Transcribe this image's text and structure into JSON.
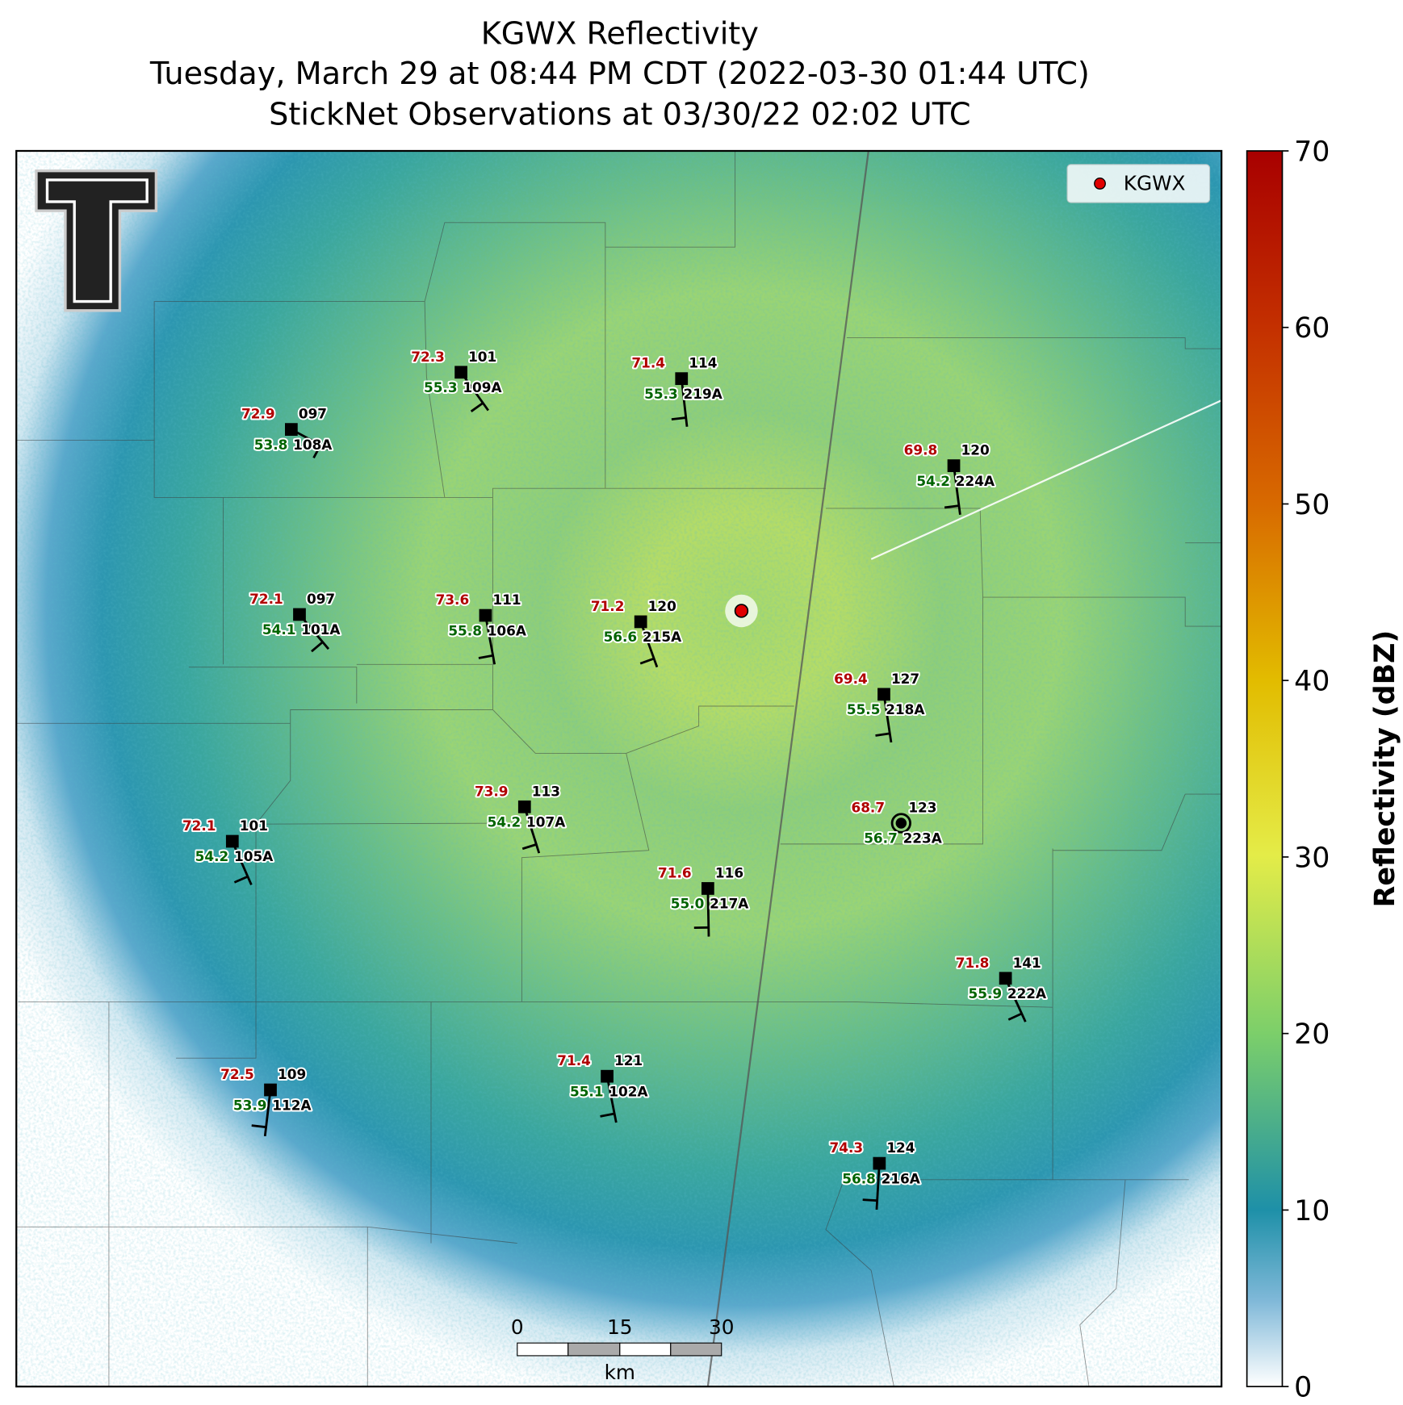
{
  "title": [
    "KGWX Reflectivity",
    "Tuesday, March 29 at 08:44 PM CDT (2022-03-30 01:44 UTC)",
    "StickNet Observations at 03/30/22 02:02 UTC"
  ],
  "legend": {
    "label": "KGWX"
  },
  "colorbar": {
    "label": "Reflectivity (dBZ)",
    "lim": [
      0,
      70
    ],
    "ticks": [
      0,
      10,
      20,
      30,
      40,
      50,
      60,
      70
    ]
  },
  "scalebar": {
    "labels": [
      "0",
      "15",
      "30"
    ],
    "unit": "km"
  },
  "stations": [
    {
      "id": "109A",
      "temp": "72.3",
      "dew": "55.3",
      "code": "101"
    },
    {
      "id": "219A",
      "temp": "71.4",
      "dew": "55.3",
      "code": "114"
    },
    {
      "id": "108A",
      "temp": "72.9",
      "dew": "53.8",
      "code": "097"
    },
    {
      "id": "224A",
      "temp": "69.8",
      "dew": "54.2",
      "code": "120"
    },
    {
      "id": "101A",
      "temp": "72.1",
      "dew": "54.1",
      "code": "097"
    },
    {
      "id": "106A",
      "temp": "73.6",
      "dew": "55.8",
      "code": "111"
    },
    {
      "id": "215A",
      "temp": "71.2",
      "dew": "56.6",
      "code": "120"
    },
    {
      "id": "218A",
      "temp": "69.4",
      "dew": "55.5",
      "code": "127"
    },
    {
      "id": "223A",
      "temp": "68.7",
      "dew": "56.7",
      "code": "123"
    },
    {
      "id": "107A",
      "temp": "73.9",
      "dew": "54.2",
      "code": "113"
    },
    {
      "id": "105A",
      "temp": "72.1",
      "dew": "54.2",
      "code": "101"
    },
    {
      "id": "217A",
      "temp": "71.6",
      "dew": "55.0",
      "code": "116"
    },
    {
      "id": "222A",
      "temp": "71.8",
      "dew": "55.9",
      "code": "141"
    },
    {
      "id": "102A",
      "temp": "71.4",
      "dew": "55.1",
      "code": "121"
    },
    {
      "id": "112A",
      "temp": "72.5",
      "dew": "53.9",
      "code": "109"
    },
    {
      "id": "216A",
      "temp": "74.3",
      "dew": "56.8",
      "code": "124"
    }
  ]
}
